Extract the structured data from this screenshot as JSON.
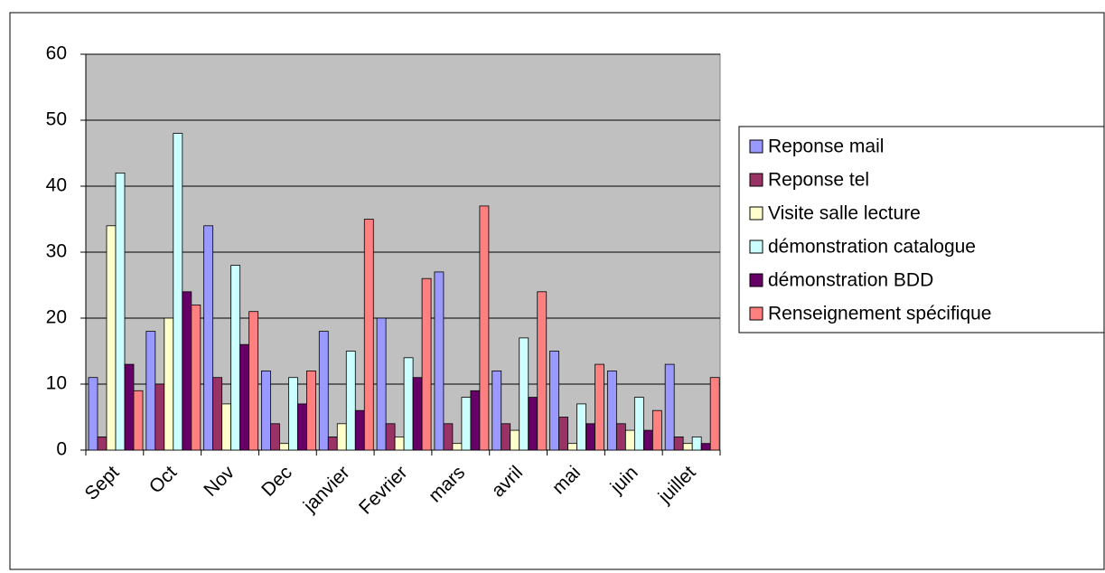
{
  "chart_data": {
    "type": "bar",
    "categories": [
      "Sept",
      "Oct",
      "Nov",
      "Dec",
      "janvier",
      "Fevrier",
      "mars",
      "avril",
      "mai",
      "juin",
      "juillet"
    ],
    "series": [
      {
        "name": "Reponse mail",
        "color": "#9999ff",
        "values": [
          11,
          18,
          34,
          12,
          18,
          20,
          27,
          12,
          15,
          12,
          13
        ]
      },
      {
        "name": "Reponse tel",
        "color": "#993366",
        "values": [
          2,
          10,
          11,
          4,
          2,
          4,
          4,
          4,
          5,
          4,
          2
        ]
      },
      {
        "name": "Visite salle lecture",
        "color": "#ffffcc",
        "values": [
          34,
          20,
          7,
          1,
          4,
          2,
          1,
          3,
          1,
          3,
          1
        ]
      },
      {
        "name": "démonstration catalogue",
        "color": "#ccffff",
        "values": [
          42,
          48,
          28,
          11,
          15,
          14,
          8,
          17,
          7,
          8,
          2
        ]
      },
      {
        "name": "démonstration BDD",
        "color": "#660066",
        "values": [
          13,
          24,
          16,
          7,
          6,
          11,
          9,
          8,
          4,
          3,
          1
        ]
      },
      {
        "name": "Renseignement spécifique",
        "color": "#ff8080",
        "values": [
          9,
          22,
          21,
          12,
          35,
          26,
          37,
          24,
          13,
          6,
          11
        ]
      }
    ],
    "ylim": [
      0,
      60
    ],
    "yticks": [
      0,
      10,
      20,
      30,
      40,
      50,
      60
    ],
    "grid": true,
    "legend": "right"
  }
}
